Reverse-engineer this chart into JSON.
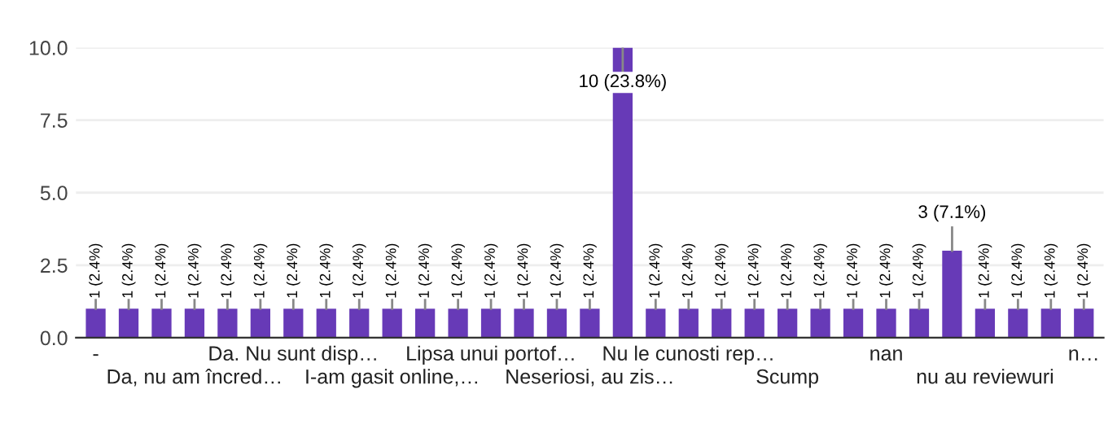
{
  "chart_data": {
    "type": "bar",
    "categories": [
      "-",
      null,
      null,
      "Da, nu am încred…",
      null,
      null,
      "Da. Nu sunt disp…",
      null,
      null,
      "I-am gasit online,…",
      null,
      null,
      "Lipsa unui portof…",
      null,
      null,
      "Neseriosi, au zis…",
      null,
      null,
      "Nu le cunosti rep…",
      null,
      null,
      "Scump",
      null,
      null,
      "nan",
      null,
      null,
      "nu au reviewuri",
      null,
      null,
      "n…"
    ],
    "values": [
      1,
      1,
      1,
      1,
      1,
      1,
      1,
      1,
      1,
      1,
      1,
      1,
      1,
      1,
      1,
      1,
      10,
      1,
      1,
      1,
      1,
      1,
      1,
      1,
      1,
      1,
      3,
      1,
      1,
      1,
      1
    ],
    "value_labels": [
      "1 (2.4%)",
      "1 (2.4%)",
      "1 (2.4%)",
      "1 (2.4%)",
      "1 (2.4%)",
      "1 (2.4%)",
      "1 (2.4%)",
      "1 (2.4%)",
      "1 (2.4%)",
      "1 (2.4%)",
      "1 (2.4%)",
      "1 (2.4%)",
      "1 (2.4%)",
      "1 (2.4%)",
      "1 (2.4%)",
      "1 (2.4%)",
      "10 (23.8%)",
      "1 (2.4%)",
      "1 (2.4%)",
      "1 (2.4%)",
      "1 (2.4%)",
      "1 (2.4%)",
      "1 (2.4%)",
      "1 (2.4%)",
      "1 (2.4%)",
      "1 (2.4%)",
      "3 (7.1%)",
      "1 (2.4%)",
      "1 (2.4%)",
      "1 (2.4%)",
      "1 (2.4%)"
    ],
    "color": "#673ab7",
    "ylim": [
      0,
      10
    ],
    "yticks": [
      {
        "value": 0,
        "label": "0.0"
      },
      {
        "value": 2.5,
        "label": "2.5"
      },
      {
        "value": 5,
        "label": "5.0"
      },
      {
        "value": 7.5,
        "label": "7.5"
      },
      {
        "value": 10,
        "label": "10.0"
      }
    ],
    "grid": "y",
    "legend": false
  }
}
